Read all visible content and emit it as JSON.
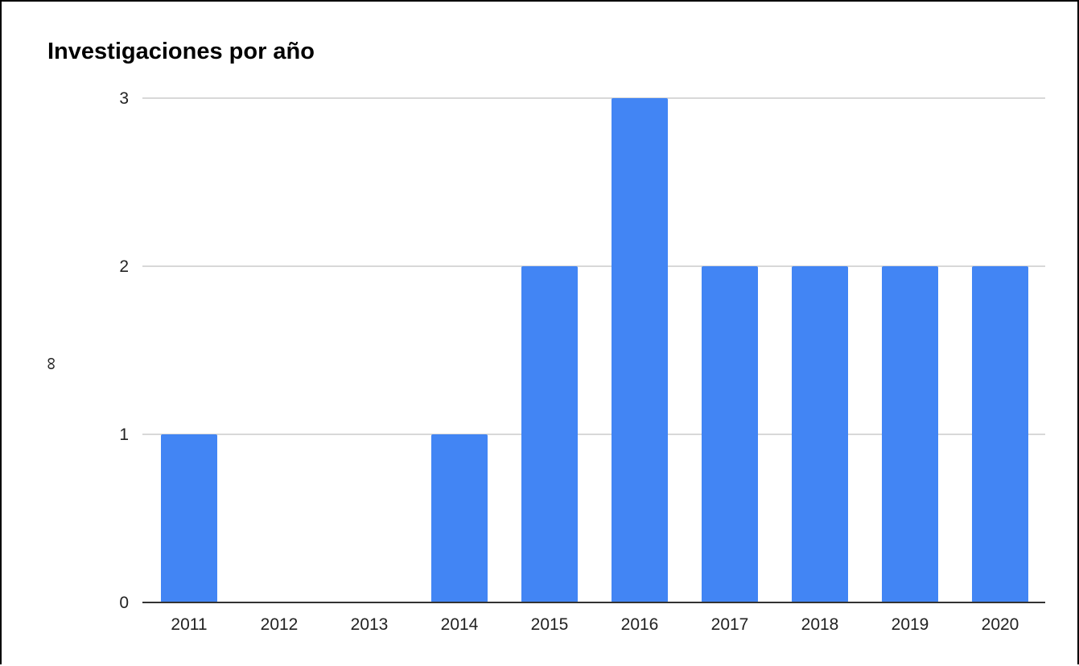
{
  "chart_data": {
    "type": "bar",
    "title": "Investigaciones por año",
    "xlabel": "",
    "ylabel": "∞",
    "categories": [
      "2011",
      "2012",
      "2013",
      "2014",
      "2015",
      "2016",
      "2017",
      "2018",
      "2019",
      "2020"
    ],
    "series": [
      {
        "values": [
          1,
          0,
          0,
          1,
          2,
          3,
          2,
          2,
          2,
          2
        ]
      }
    ],
    "ylim": [
      0,
      3
    ],
    "yticks": [
      "0",
      "1",
      "2",
      "3"
    ],
    "grid": true,
    "legend": "none",
    "bar_color": "#4285F4",
    "grid_color": "#CCCCCC",
    "axis_color": "#333333"
  }
}
